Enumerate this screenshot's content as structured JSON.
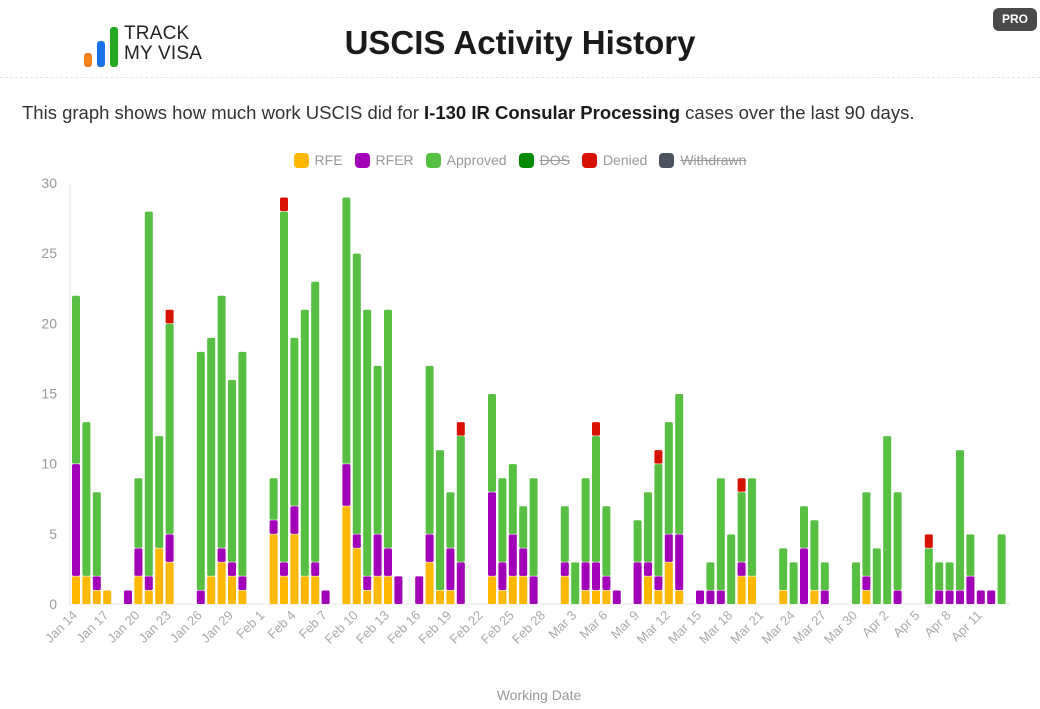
{
  "header": {
    "logo_text_line1": "TRACK",
    "logo_text_line2": "MY VISA",
    "logo_colors": [
      "#f58220",
      "#1a73e8",
      "#22a822"
    ],
    "title": "USCIS Activity History",
    "pro_badge": "PRO"
  },
  "description": {
    "prefix": "This graph shows how much work USCIS did for ",
    "case_type": "I-130 IR Consular Processing",
    "suffix": " cases over the last 90 days."
  },
  "chart_data": {
    "type": "bar",
    "stacked": true,
    "xlabel": "Working Date",
    "ylabel": "",
    "ylim": [
      0,
      30
    ],
    "yticks": [
      0,
      5,
      10,
      15,
      20,
      25,
      30
    ],
    "grid": false,
    "legend_placement": "top",
    "legend": [
      {
        "name": "RFE",
        "color": "#ffb800",
        "hidden": false
      },
      {
        "name": "RFER",
        "color": "#a100b8",
        "hidden": false
      },
      {
        "name": "Approved",
        "color": "#57bf42",
        "hidden": false
      },
      {
        "name": "DOS",
        "color": "#008a00",
        "hidden": true
      },
      {
        "name": "Denied",
        "color": "#d91100",
        "hidden": false
      },
      {
        "name": "Withdrawn",
        "color": "#4b5260",
        "hidden": true
      }
    ],
    "tick_labels": [
      "Jan 14",
      "Jan 17",
      "Jan 20",
      "Jan 23",
      "Jan 26",
      "Jan 29",
      "Feb 1",
      "Feb 4",
      "Feb 7",
      "Feb 10",
      "Feb 13",
      "Feb 16",
      "Feb 19",
      "Feb 22",
      "Feb 25",
      "Feb 28",
      "Mar 3",
      "Mar 6",
      "Mar 9",
      "Mar 12",
      "Mar 15",
      "Mar 18",
      "Mar 21",
      "Mar 24",
      "Mar 27",
      "Mar 30",
      "Apr 2",
      "Apr 5",
      "Apr 8",
      "Apr 11"
    ],
    "categories": [
      "Jan 14",
      "Jan 15",
      "Jan 16",
      "Jan 17",
      "Jan 18",
      "Jan 19",
      "Jan 20",
      "Jan 21",
      "Jan 22",
      "Jan 23",
      "Jan 24",
      "Jan 25",
      "Jan 26",
      "Jan 27",
      "Jan 28",
      "Jan 29",
      "Jan 30",
      "Jan 31",
      "Feb 1",
      "Feb 2",
      "Feb 3",
      "Feb 4",
      "Feb 5",
      "Feb 6",
      "Feb 7",
      "Feb 8",
      "Feb 9",
      "Feb 10",
      "Feb 11",
      "Feb 12",
      "Feb 13",
      "Feb 14",
      "Feb 15",
      "Feb 16",
      "Feb 17",
      "Feb 18",
      "Feb 19",
      "Feb 20",
      "Feb 21",
      "Feb 22",
      "Feb 23",
      "Feb 24",
      "Feb 25",
      "Feb 26",
      "Feb 27",
      "Feb 28",
      "Mar 1",
      "Mar 2",
      "Mar 3",
      "Mar 4",
      "Mar 5",
      "Mar 6",
      "Mar 7",
      "Mar 8",
      "Mar 9",
      "Mar 10",
      "Mar 11",
      "Mar 12",
      "Mar 13",
      "Mar 14",
      "Mar 15",
      "Mar 16",
      "Mar 17",
      "Mar 18",
      "Mar 19",
      "Mar 20",
      "Mar 21",
      "Mar 22",
      "Mar 23",
      "Mar 24",
      "Mar 25",
      "Mar 26",
      "Mar 27",
      "Mar 28",
      "Mar 29",
      "Mar 30",
      "Mar 31",
      "Apr 1",
      "Apr 2",
      "Apr 3",
      "Apr 4",
      "Apr 5",
      "Apr 6",
      "Apr 7",
      "Apr 8",
      "Apr 9",
      "Apr 10",
      "Apr 11",
      "Apr 12",
      "Apr 13"
    ],
    "series": [
      {
        "name": "RFE",
        "color": "#ffb800",
        "values": [
          2,
          2,
          1,
          1,
          0,
          0,
          2,
          1,
          4,
          3,
          0,
          0,
          0,
          2,
          3,
          2,
          1,
          0,
          0,
          5,
          2,
          5,
          2,
          2,
          0,
          0,
          7,
          4,
          1,
          2,
          2,
          0,
          0,
          0,
          3,
          1,
          1,
          0,
          0,
          0,
          2,
          1,
          2,
          2,
          0,
          0,
          0,
          2,
          0,
          1,
          1,
          1,
          0,
          0,
          0,
          2,
          1,
          3,
          1,
          0,
          0,
          0,
          0,
          0,
          2,
          2,
          0,
          0,
          1,
          0,
          0,
          1,
          0,
          0,
          0,
          0,
          1,
          0,
          0,
          0,
          0,
          0,
          0,
          0,
          0,
          0,
          0,
          0,
          0,
          0
        ]
      },
      {
        "name": "RFER",
        "color": "#a100b8",
        "values": [
          8,
          0,
          1,
          0,
          0,
          1,
          2,
          1,
          0,
          2,
          0,
          0,
          1,
          0,
          1,
          1,
          1,
          0,
          0,
          1,
          1,
          2,
          0,
          1,
          1,
          0,
          3,
          1,
          1,
          3,
          2,
          2,
          0,
          2,
          2,
          0,
          3,
          3,
          0,
          0,
          6,
          2,
          3,
          2,
          2,
          0,
          0,
          1,
          0,
          2,
          2,
          1,
          1,
          0,
          3,
          1,
          1,
          2,
          4,
          0,
          1,
          1,
          1,
          0,
          1,
          0,
          0,
          0,
          0,
          0,
          4,
          0,
          1,
          0,
          0,
          0,
          1,
          0,
          0,
          1,
          0,
          0,
          0,
          1,
          1,
          1,
          2,
          1,
          1,
          0
        ]
      },
      {
        "name": "Approved",
        "color": "#57bf42",
        "values": [
          12,
          11,
          6,
          0,
          0,
          0,
          5,
          26,
          8,
          15,
          0,
          0,
          17,
          17,
          18,
          13,
          16,
          0,
          0,
          3,
          25,
          12,
          19,
          20,
          0,
          0,
          19,
          20,
          19,
          12,
          17,
          0,
          0,
          0,
          12,
          10,
          4,
          9,
          0,
          0,
          7,
          6,
          5,
          3,
          7,
          0,
          0,
          4,
          3,
          6,
          9,
          5,
          0,
          0,
          3,
          5,
          8,
          8,
          10,
          0,
          0,
          2,
          8,
          5,
          5,
          7,
          0,
          0,
          3,
          3,
          3,
          5,
          2,
          0,
          0,
          3,
          6,
          4,
          12,
          7,
          0,
          0,
          4,
          2,
          2,
          10,
          3,
          0,
          0,
          5
        ]
      },
      {
        "name": "Denied",
        "color": "#d91100",
        "values": [
          0,
          0,
          0,
          0,
          0,
          0,
          0,
          0,
          0,
          1,
          0,
          0,
          0,
          0,
          0,
          0,
          0,
          0,
          0,
          0,
          1,
          0,
          0,
          0,
          0,
          0,
          0,
          0,
          0,
          0,
          0,
          0,
          0,
          0,
          0,
          0,
          0,
          1,
          0,
          0,
          0,
          0,
          0,
          0,
          0,
          0,
          0,
          0,
          0,
          0,
          1,
          0,
          0,
          0,
          0,
          0,
          1,
          0,
          0,
          0,
          0,
          0,
          0,
          0,
          1,
          0,
          0,
          0,
          0,
          0,
          0,
          0,
          0,
          0,
          0,
          0,
          0,
          0,
          0,
          0,
          0,
          0,
          1,
          0,
          0,
          0,
          0,
          0,
          0,
          0
        ]
      }
    ]
  }
}
